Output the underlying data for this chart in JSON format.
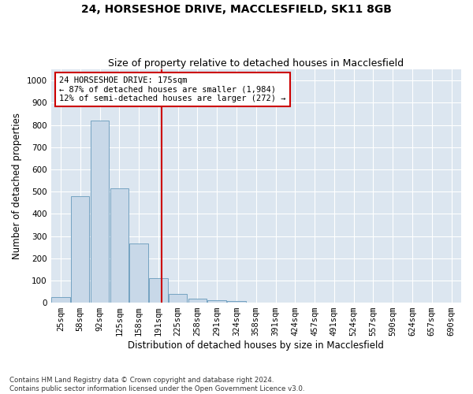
{
  "title_line1": "24, HORSESHOE DRIVE, MACCLESFIELD, SK11 8GB",
  "title_line2": "Size of property relative to detached houses in Macclesfield",
  "xlabel": "Distribution of detached houses by size in Macclesfield",
  "ylabel": "Number of detached properties",
  "footnote1": "Contains HM Land Registry data © Crown copyright and database right 2024.",
  "footnote2": "Contains public sector information licensed under the Open Government Licence v3.0.",
  "categories": [
    "25sqm",
    "58sqm",
    "92sqm",
    "125sqm",
    "158sqm",
    "191sqm",
    "225sqm",
    "258sqm",
    "291sqm",
    "324sqm",
    "358sqm",
    "391sqm",
    "424sqm",
    "457sqm",
    "491sqm",
    "524sqm",
    "557sqm",
    "590sqm",
    "624sqm",
    "657sqm",
    "690sqm"
  ],
  "values": [
    25,
    480,
    820,
    515,
    265,
    110,
    38,
    18,
    10,
    7,
    0,
    0,
    0,
    0,
    0,
    0,
    0,
    0,
    0,
    0,
    0
  ],
  "bar_color": "#c8d8e8",
  "bar_edge_color": "#6699bb",
  "vline_x": 5.15,
  "vline_color": "#cc0000",
  "annotation_text": "24 HORSESHOE DRIVE: 175sqm\n← 87% of detached houses are smaller (1,984)\n12% of semi-detached houses are larger (272) →",
  "annotation_box_color": "#ffffff",
  "annotation_box_edge": "#cc0000",
  "ylim": [
    0,
    1050
  ],
  "yticks": [
    0,
    100,
    200,
    300,
    400,
    500,
    600,
    700,
    800,
    900,
    1000
  ],
  "background_color": "#dce6f0",
  "grid_color": "#ffffff",
  "fig_background": "#ffffff",
  "title_fontsize": 10,
  "subtitle_fontsize": 9,
  "axis_label_fontsize": 8.5,
  "tick_fontsize": 7.5,
  "annot_fontsize": 7.5
}
